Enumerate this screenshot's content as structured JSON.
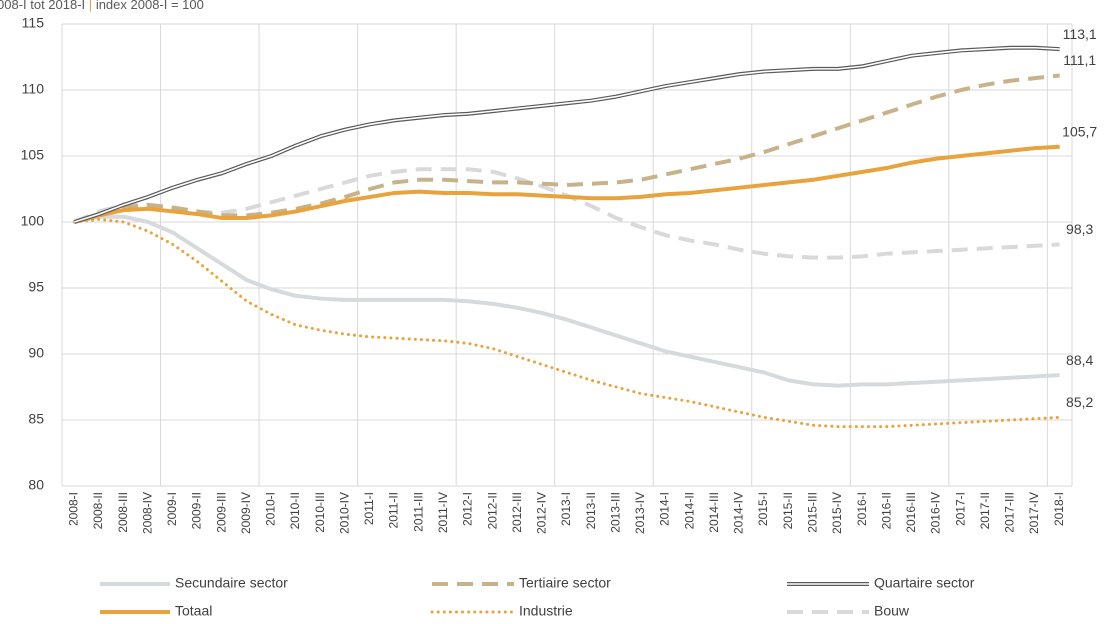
{
  "chart_data": {
    "type": "line",
    "subtitle": "008-I tot 2018-I",
    "subtitle_separator": "|",
    "subtitle_note": "index 2008-I = 100",
    "categories": [
      "2008-I",
      "2008-II",
      "2008-III",
      "2008-IV",
      "2009-I",
      "2009-II",
      "2009-III",
      "2009-IV",
      "2010-I",
      "2010-II",
      "2010-III",
      "2010-IV",
      "2011-I",
      "2011-II",
      "2011-III",
      "2011-IV",
      "2012-I",
      "2012-II",
      "2012-III",
      "2012-IV",
      "2013-I",
      "2013-II",
      "2013-III",
      "2013-IV",
      "2014-I",
      "2014-II",
      "2014-III",
      "2014-IV",
      "2015-I",
      "2015-II",
      "2015-III",
      "2015-IV",
      "2016-I",
      "2016-II",
      "2016-III",
      "2016-IV",
      "2017-I",
      "2017-II",
      "2017-III",
      "2017-IV",
      "2018-I"
    ],
    "ylim": [
      80,
      115
    ],
    "yticks": [
      80,
      85,
      90,
      95,
      100,
      105,
      110,
      115
    ],
    "grid": true,
    "series": [
      {
        "name": "Secundaire sector",
        "color": "#d6dadd",
        "style": "solid",
        "values": [
          100,
          100.4,
          100.4,
          100.0,
          99.2,
          98.0,
          96.8,
          95.6,
          94.9,
          94.4,
          94.2,
          94.1,
          94.1,
          94.1,
          94.1,
          94.1,
          94.0,
          93.8,
          93.5,
          93.1,
          92.6,
          92.0,
          91.4,
          90.8,
          90.2,
          89.8,
          89.4,
          89.0,
          88.6,
          88.0,
          87.7,
          87.6,
          87.7,
          87.7,
          87.8,
          87.9,
          88.0,
          88.1,
          88.2,
          88.3,
          88.4
        ],
        "value_labels": [
          null,
          null,
          null,
          null,
          null,
          null,
          null,
          null,
          null,
          null,
          null,
          null,
          null,
          null,
          null,
          null,
          null,
          null,
          null,
          null,
          null,
          null,
          null,
          null,
          null,
          null,
          null,
          null,
          null,
          null,
          null,
          null,
          null,
          null,
          null,
          null,
          null,
          null,
          null,
          null,
          "88,4"
        ]
      },
      {
        "name": "Tertiaire sector",
        "color": "#c8b28a",
        "style": "dashed",
        "values": [
          100,
          100.6,
          101.1,
          101.3,
          101.1,
          100.8,
          100.5,
          100.5,
          100.7,
          101.0,
          101.4,
          101.9,
          102.5,
          103.0,
          103.2,
          103.2,
          103.1,
          103.0,
          103.0,
          102.9,
          102.8,
          102.9,
          103.0,
          103.2,
          103.6,
          104.0,
          104.4,
          104.8,
          105.3,
          105.9,
          106.5,
          107.1,
          107.7,
          108.3,
          108.9,
          109.5,
          110.0,
          110.4,
          110.7,
          110.9,
          111.1
        ],
        "value_labels": [
          null,
          null,
          null,
          null,
          null,
          null,
          null,
          null,
          null,
          null,
          null,
          null,
          null,
          null,
          null,
          null,
          null,
          null,
          null,
          null,
          null,
          null,
          null,
          null,
          null,
          null,
          null,
          null,
          null,
          null,
          null,
          null,
          null,
          null,
          null,
          null,
          null,
          null,
          null,
          null,
          "111,1"
        ]
      },
      {
        "name": "Quartaire sector",
        "color": "#595959",
        "style": "double",
        "values": [
          100,
          100.6,
          101.3,
          101.9,
          102.6,
          103.2,
          103.7,
          104.4,
          105.0,
          105.8,
          106.5,
          107.0,
          107.4,
          107.7,
          107.9,
          108.1,
          108.2,
          108.4,
          108.6,
          108.8,
          109.0,
          109.2,
          109.5,
          109.9,
          110.3,
          110.6,
          110.9,
          111.2,
          111.4,
          111.5,
          111.6,
          111.6,
          111.8,
          112.2,
          112.6,
          112.8,
          113.0,
          113.1,
          113.2,
          113.2,
          113.1
        ],
        "value_labels": [
          null,
          null,
          null,
          null,
          null,
          null,
          null,
          null,
          null,
          null,
          null,
          null,
          null,
          null,
          null,
          null,
          null,
          null,
          null,
          null,
          null,
          null,
          null,
          null,
          null,
          null,
          null,
          null,
          null,
          null,
          null,
          null,
          null,
          null,
          null,
          null,
          null,
          null,
          null,
          null,
          "113,1"
        ]
      },
      {
        "name": "Totaal",
        "color": "#e8a33c",
        "style": "solid",
        "values": [
          100,
          100.5,
          100.9,
          101.0,
          100.8,
          100.6,
          100.3,
          100.3,
          100.5,
          100.8,
          101.2,
          101.6,
          101.9,
          102.2,
          102.3,
          102.2,
          102.2,
          102.1,
          102.1,
          102.0,
          101.9,
          101.8,
          101.8,
          101.9,
          102.1,
          102.2,
          102.4,
          102.6,
          102.8,
          103.0,
          103.2,
          103.5,
          103.8,
          104.1,
          104.5,
          104.8,
          105.0,
          105.2,
          105.4,
          105.6,
          105.7
        ],
        "value_labels": [
          null,
          null,
          null,
          null,
          null,
          null,
          null,
          null,
          null,
          null,
          null,
          null,
          null,
          null,
          null,
          null,
          null,
          null,
          null,
          null,
          null,
          null,
          null,
          null,
          null,
          null,
          null,
          null,
          null,
          null,
          null,
          null,
          null,
          null,
          null,
          null,
          null,
          null,
          null,
          null,
          "105,7"
        ]
      },
      {
        "name": "Industrie",
        "color": "#e8a33c",
        "style": "dotted",
        "values": [
          100,
          100.2,
          100.0,
          99.3,
          98.3,
          97.0,
          95.5,
          94.0,
          93.0,
          92.2,
          91.8,
          91.5,
          91.3,
          91.2,
          91.1,
          91.0,
          90.8,
          90.4,
          89.8,
          89.2,
          88.6,
          88.0,
          87.5,
          87.0,
          86.7,
          86.4,
          86.0,
          85.6,
          85.2,
          84.9,
          84.6,
          84.5,
          84.5,
          84.5,
          84.6,
          84.7,
          84.8,
          84.9,
          85.0,
          85.1,
          85.2
        ],
        "value_labels": [
          null,
          null,
          null,
          null,
          null,
          null,
          null,
          null,
          null,
          null,
          null,
          null,
          null,
          null,
          null,
          null,
          null,
          null,
          null,
          null,
          null,
          null,
          null,
          null,
          null,
          null,
          null,
          null,
          null,
          null,
          null,
          null,
          null,
          null,
          null,
          null,
          null,
          null,
          null,
          null,
          "85,2"
        ]
      },
      {
        "name": "Bouw",
        "color": "#d9d9d9",
        "style": "dashed",
        "values": [
          100,
          100.8,
          101.3,
          101.3,
          101.0,
          100.8,
          100.7,
          101.0,
          101.5,
          102.0,
          102.5,
          103.0,
          103.5,
          103.8,
          104.0,
          104.0,
          104.0,
          103.8,
          103.3,
          102.7,
          102.0,
          101.2,
          100.3,
          99.6,
          99.0,
          98.6,
          98.3,
          97.9,
          97.6,
          97.4,
          97.3,
          97.3,
          97.4,
          97.6,
          97.7,
          97.8,
          97.9,
          98.0,
          98.1,
          98.2,
          98.3
        ],
        "value_labels": [
          null,
          null,
          null,
          null,
          null,
          null,
          null,
          null,
          null,
          null,
          null,
          null,
          null,
          null,
          null,
          null,
          null,
          null,
          null,
          null,
          null,
          null,
          null,
          null,
          null,
          null,
          null,
          null,
          null,
          null,
          null,
          null,
          null,
          null,
          null,
          null,
          null,
          null,
          null,
          null,
          "98,3"
        ]
      }
    ]
  }
}
